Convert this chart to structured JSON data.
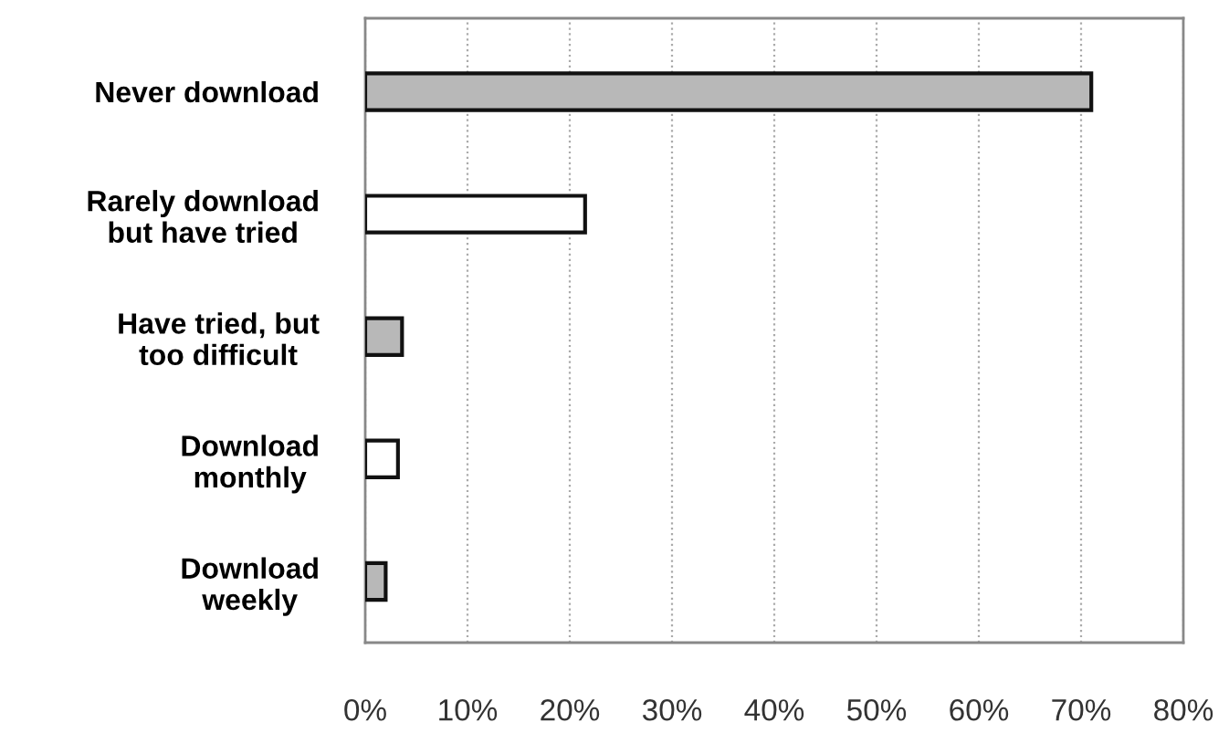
{
  "chart_data": {
    "type": "bar",
    "orientation": "horizontal",
    "categories": [
      "Never download",
      "Rarely download\nbut have tried",
      "Have tried, but\ntoo difficult",
      "Download\nmonthly",
      "Download\nweekly"
    ],
    "values": [
      71,
      21.5,
      3.6,
      3.2,
      2
    ],
    "colors": [
      "#b8b8b8",
      "#ffffff",
      "#b8b8b8",
      "#ffffff",
      "#b8b8b8"
    ],
    "xlim": [
      0,
      80
    ],
    "xticks": [
      {
        "value": 0,
        "label": "0%"
      },
      {
        "value": 10,
        "label": "10%"
      },
      {
        "value": 20,
        "label": "20%"
      },
      {
        "value": 30,
        "label": "30%"
      },
      {
        "value": 40,
        "label": "40%"
      },
      {
        "value": 50,
        "label": "50%"
      },
      {
        "value": 60,
        "label": "60%"
      },
      {
        "value": 70,
        "label": "70%"
      },
      {
        "value": 80,
        "label": "80%"
      }
    ],
    "grid": "x"
  }
}
